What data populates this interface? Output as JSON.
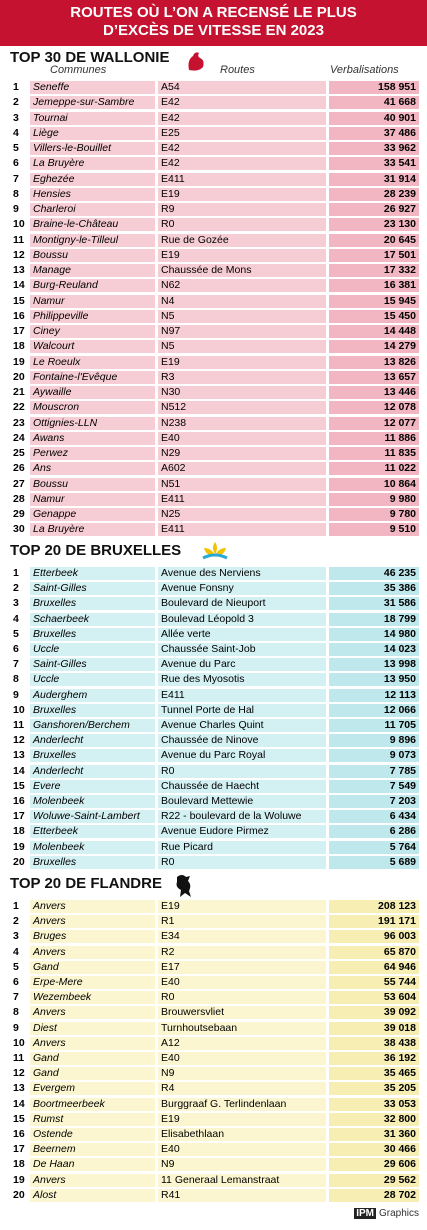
{
  "header": {
    "title_line1": "ROUTES OÙ L’ON A RECENSÉ LE PLUS",
    "title_line2": "D’EXCÈS DE VITESSE EN 2023"
  },
  "sections": [
    {
      "title": "TOP 30 DE WALLONIE",
      "columns": [
        "Communes",
        "Routes",
        "Verbalisations"
      ],
      "rows": [
        [
          1,
          "Seneffe",
          "A54",
          "158 951"
        ],
        [
          2,
          "Jemeppe-sur-Sambre",
          "E42",
          "41 668"
        ],
        [
          3,
          "Tournai",
          "E42",
          "40 901"
        ],
        [
          4,
          "Liège",
          "E25",
          "37 486"
        ],
        [
          5,
          "Villers-le-Bouillet",
          "E42",
          "33 962"
        ],
        [
          6,
          "La Bruyère",
          "E42",
          "33 541"
        ],
        [
          7,
          "Eghezée",
          "E411",
          "31 914"
        ],
        [
          8,
          "Hensies",
          "E19",
          "28 239"
        ],
        [
          9,
          "Charleroi",
          "R9",
          "26 927"
        ],
        [
          10,
          "Braine-le-Château",
          "R0",
          "23 130"
        ],
        [
          11,
          "Montigny-le-Tilleul",
          "Rue de Gozée",
          "20 645"
        ],
        [
          12,
          "Boussu",
          "E19",
          "17 501"
        ],
        [
          13,
          "Manage",
          "Chaussée de Mons",
          "17 332"
        ],
        [
          14,
          "Burg-Reuland",
          "N62",
          "16 381"
        ],
        [
          15,
          "Namur",
          "N4",
          "15 945"
        ],
        [
          16,
          "Philippeville",
          "N5",
          "15 450"
        ],
        [
          17,
          "Ciney",
          "N97",
          "14 448"
        ],
        [
          18,
          "Walcourt",
          "N5",
          "14 279"
        ],
        [
          19,
          "Le Roeulx",
          "E19",
          "13 826"
        ],
        [
          20,
          "Fontaine-l'Evêque",
          "R3",
          "13 657"
        ],
        [
          21,
          "Aywaille",
          "N30",
          "13 446"
        ],
        [
          22,
          "Mouscron",
          "N512",
          "12 078"
        ],
        [
          23,
          "Ottignies-LLN",
          "N238",
          "12 077"
        ],
        [
          24,
          "Awans",
          "E40",
          "11 886"
        ],
        [
          25,
          "Perwez",
          "N29",
          "11 835"
        ],
        [
          26,
          "Ans",
          "A602",
          "11 022"
        ],
        [
          27,
          "Boussu",
          "N51",
          "10 864"
        ],
        [
          28,
          "Namur",
          "E411",
          "9 980"
        ],
        [
          29,
          "Genappe",
          "N25",
          "9 780"
        ],
        [
          30,
          "La Bruyère",
          "E411",
          "9 510"
        ]
      ]
    },
    {
      "title": "TOP 20 DE BRUXELLES",
      "rows": [
        [
          1,
          "Etterbeek",
          "Avenue des Nerviens",
          "46 235"
        ],
        [
          2,
          "Saint-Gilles",
          "Avenue Fonsny",
          "35 386"
        ],
        [
          3,
          "Bruxelles",
          "Boulevard de Nieuport",
          "31 586"
        ],
        [
          4,
          "Schaerbeek",
          "Boulevad Léopold 3",
          "18 799"
        ],
        [
          5,
          "Bruxelles",
          "Allée verte",
          "14 980"
        ],
        [
          6,
          "Uccle",
          "Chaussée Saint-Job",
          "14 023"
        ],
        [
          7,
          "Saint-Gilles",
          "Avenue du Parc",
          "13 998"
        ],
        [
          8,
          "Uccle",
          "Rue des Myosotis",
          "13 950"
        ],
        [
          9,
          "Auderghem",
          "E411",
          "12 113"
        ],
        [
          10,
          "Bruxelles",
          "Tunnel Porte de Hal",
          "12 066"
        ],
        [
          11,
          "Ganshoren/Berchem",
          "Avenue Charles Quint",
          "11 705"
        ],
        [
          12,
          "Anderlecht",
          "Chaussée de Ninove",
          "9 896"
        ],
        [
          13,
          "Bruxelles",
          "Avenue du Parc Royal",
          "9 073"
        ],
        [
          14,
          "Anderlecht",
          "R0",
          "7 785"
        ],
        [
          15,
          "Evere",
          "Chaussée de Haecht",
          "7 549"
        ],
        [
          16,
          "Molenbeek",
          "Boulevard Mettewie",
          "7 203"
        ],
        [
          17,
          "Woluwe-Saint-Lambert",
          "R22 - boulevard de la Woluwe",
          "6 434"
        ],
        [
          18,
          "Etterbeek",
          "Avenue Eudore Pirmez",
          "6 286"
        ],
        [
          19,
          "Molenbeek",
          "Rue Picard",
          "5 764"
        ],
        [
          20,
          "Bruxelles",
          "R0",
          "5 689"
        ]
      ]
    },
    {
      "title": "TOP 20 DE FLANDRE",
      "rows": [
        [
          1,
          "Anvers",
          "E19",
          "208 123"
        ],
        [
          2,
          "Anvers",
          "R1",
          "191 171"
        ],
        [
          3,
          "Bruges",
          "E34",
          "96 003"
        ],
        [
          4,
          "Anvers",
          "R2",
          "65 870"
        ],
        [
          5,
          "Gand",
          "E17",
          "64 946"
        ],
        [
          6,
          "Erpe-Mere",
          "E40",
          "55 744"
        ],
        [
          7,
          "Wezembeek",
          "R0",
          "53 604"
        ],
        [
          8,
          "Anvers",
          "Brouwersvliet",
          "39 092"
        ],
        [
          9,
          "Diest",
          "Turnhoutsebaan",
          "39 018"
        ],
        [
          10,
          "Anvers",
          "A12",
          "38 438"
        ],
        [
          11,
          "Gand",
          "E40",
          "36 192"
        ],
        [
          12,
          "Gand",
          "N9",
          "35 465"
        ],
        [
          13,
          "Evergem",
          "R4",
          "35 205"
        ],
        [
          14,
          "Boortmeerbeek",
          "Burggraaf G. Terlindenlaan",
          "33 053"
        ],
        [
          15,
          "Rumst",
          "E19",
          "32 800"
        ],
        [
          16,
          "Ostende",
          "Elisabethlaan",
          "31 360"
        ],
        [
          17,
          "Beernem",
          "E40",
          "30 466"
        ],
        [
          18,
          "De Haan",
          "N9",
          "29 606"
        ],
        [
          19,
          "Anvers",
          "11 Generaal Lemanstraat",
          "29 562"
        ],
        [
          20,
          "Alost",
          "R41",
          "28 702"
        ]
      ]
    }
  ],
  "footer": {
    "brand": "IPM",
    "label": "Graphics"
  }
}
